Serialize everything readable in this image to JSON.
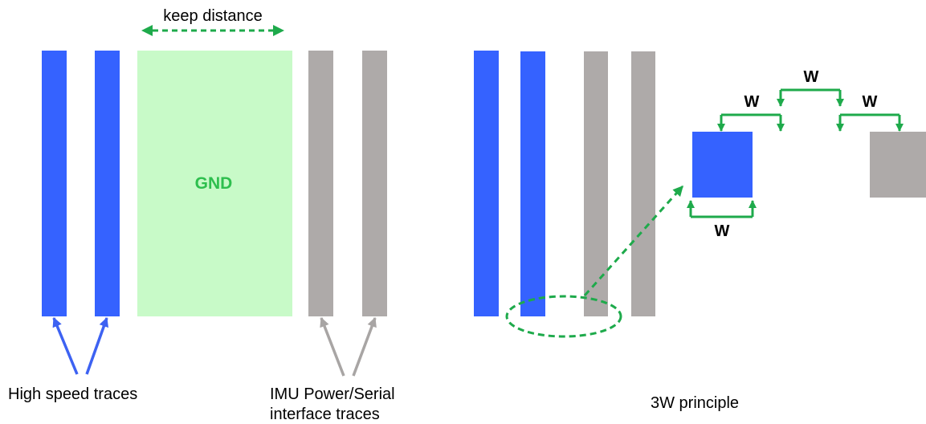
{
  "labels": {
    "keep_distance": "keep distance",
    "gnd": "GND",
    "high_speed": "High speed traces",
    "imu_line1": "IMU Power/Serial",
    "imu_line2": "interface traces",
    "principle": "3W principle",
    "w": "W"
  },
  "colors": {
    "blue": "#3562FF",
    "gray": "#AEAAA9",
    "green": "#1EAA4B",
    "gnd_fill": "#C8FAC8",
    "gnd_text": "#2EBF4E",
    "blue_arrow": "#3D62F2",
    "gray_arrow": "#A8A5A4"
  }
}
